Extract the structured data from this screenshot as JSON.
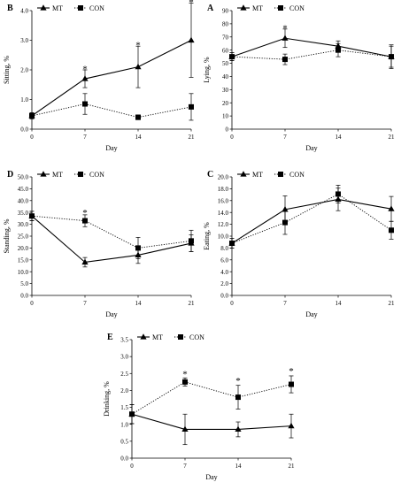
{
  "figure": {
    "legend_series_a": "MT",
    "legend_series_b": "CON",
    "colors": {
      "ink": "#000000",
      "background": "#ffffff"
    }
  },
  "chart_data": [
    {
      "panel_letter": "B",
      "type": "line",
      "x": [
        0,
        7,
        14,
        21
      ],
      "xticks": [
        "0",
        "7",
        "14",
        "21"
      ],
      "xlabel": "Day",
      "ylabel": "Sitting, %",
      "ylim": [
        0,
        4
      ],
      "yticks": [
        "0.0",
        "1.0",
        "2.0",
        "3.0",
        "4.0"
      ],
      "series": [
        {
          "name": "MT",
          "style": "solid",
          "marker": "triangle",
          "values": [
            0.45,
            1.7,
            2.1,
            3.0
          ],
          "err": [
            0.1,
            0.3,
            0.7,
            1.25
          ]
        },
        {
          "name": "CON",
          "style": "dotted",
          "marker": "square",
          "values": [
            0.45,
            0.85,
            0.4,
            0.75
          ],
          "err": [
            0.1,
            0.35,
            0.08,
            0.45
          ]
        }
      ],
      "annotations": [
        {
          "x": 7,
          "y": 2.05,
          "text": "*"
        },
        {
          "x": 14,
          "y": 2.85,
          "text": "*"
        },
        {
          "x": 21,
          "y": 4.3,
          "text": "*"
        }
      ],
      "grid": false,
      "legend": "top-left"
    },
    {
      "panel_letter": "A",
      "type": "line",
      "x": [
        0,
        7,
        14,
        21
      ],
      "xticks": [
        "0",
        "7",
        "14",
        "21"
      ],
      "xlabel": "Day",
      "ylabel": "Lying, %",
      "ylim": [
        0,
        90
      ],
      "yticks": [
        "0",
        "10",
        "20",
        "30",
        "40",
        "50",
        "60",
        "70",
        "80",
        "90"
      ],
      "series": [
        {
          "name": "MT",
          "style": "solid",
          "marker": "triangle",
          "values": [
            55,
            69,
            63,
            55
          ],
          "err": [
            3,
            7,
            4,
            9
          ]
        },
        {
          "name": "CON",
          "style": "dotted",
          "marker": "square",
          "values": [
            55,
            53,
            60,
            55
          ],
          "err": [
            3,
            4,
            5,
            8
          ]
        }
      ],
      "annotations": [
        {
          "x": 7,
          "y": 77,
          "text": "*"
        }
      ],
      "grid": false,
      "legend": "top-left"
    },
    {
      "panel_letter": "D",
      "type": "line",
      "x": [
        0,
        7,
        14,
        21
      ],
      "xticks": [
        "0",
        "7",
        "14",
        "21"
      ],
      "xlabel": "Day",
      "ylabel": "Standing, %",
      "ylim": [
        0,
        50
      ],
      "yticks": [
        "0.0",
        "5.0",
        "10.0",
        "15.0",
        "20.0",
        "25.0",
        "30.0",
        "35.0",
        "40.0",
        "45.0",
        "50.0"
      ],
      "series": [
        {
          "name": "MT",
          "style": "solid",
          "marker": "triangle",
          "values": [
            33.5,
            14,
            17,
            22
          ],
          "err": [
            2,
            2,
            3.5,
            3.5
          ]
        },
        {
          "name": "CON",
          "style": "dotted",
          "marker": "square",
          "values": [
            33.5,
            31.5,
            20,
            23
          ],
          "err": [
            2,
            2.5,
            4.5,
            4.5
          ]
        }
      ],
      "annotations": [
        {
          "x": 7,
          "y": 35,
          "text": "*"
        }
      ],
      "grid": false,
      "legend": "top-left"
    },
    {
      "panel_letter": "C",
      "type": "line",
      "x": [
        0,
        7,
        14,
        21
      ],
      "xticks": [
        "0",
        "7",
        "14",
        "21"
      ],
      "xlabel": "Day",
      "ylabel": "Eating, %",
      "ylim": [
        0,
        20
      ],
      "yticks": [
        "0.0",
        "2.0",
        "4.0",
        "6.0",
        "8.0",
        "10.0",
        "12.0",
        "14.0",
        "16.0",
        "18.0",
        "20.0"
      ],
      "series": [
        {
          "name": "MT",
          "style": "solid",
          "marker": "triangle",
          "values": [
            8.8,
            14.5,
            16.2,
            14.6
          ],
          "err": [
            0.8,
            2.3,
            1.9,
            2.1
          ]
        },
        {
          "name": "CON",
          "style": "dotted",
          "marker": "square",
          "values": [
            8.8,
            12.3,
            17.1,
            11.0
          ],
          "err": [
            0.8,
            2.0,
            1.5,
            1.5
          ]
        }
      ],
      "annotations": [],
      "grid": false,
      "legend": "top-left"
    },
    {
      "panel_letter": "E",
      "type": "line",
      "x": [
        0,
        7,
        14,
        21
      ],
      "xticks": [
        "0",
        "7",
        "14",
        "21"
      ],
      "xlabel": "Day",
      "ylabel": "Drinking, %",
      "ylim": [
        0,
        3.5
      ],
      "yticks": [
        "0.0",
        "0.5",
        "1.0",
        "1.5",
        "2.0",
        "2.5",
        "3.0",
        "3.5"
      ],
      "series": [
        {
          "name": "MT",
          "style": "solid",
          "marker": "triangle",
          "values": [
            1.3,
            0.85,
            0.85,
            0.95
          ],
          "err": [
            0.28,
            0.45,
            0.22,
            0.35
          ]
        },
        {
          "name": "CON",
          "style": "dotted",
          "marker": "square",
          "values": [
            1.3,
            2.25,
            1.8,
            2.18
          ],
          "err": [
            0.28,
            0.12,
            0.35,
            0.25
          ]
        }
      ],
      "annotations": [
        {
          "x": 7,
          "y": 2.5,
          "text": "*"
        },
        {
          "x": 14,
          "y": 2.3,
          "text": "*"
        },
        {
          "x": 21,
          "y": 2.58,
          "text": "*"
        }
      ],
      "grid": false,
      "legend": "top-left"
    }
  ]
}
